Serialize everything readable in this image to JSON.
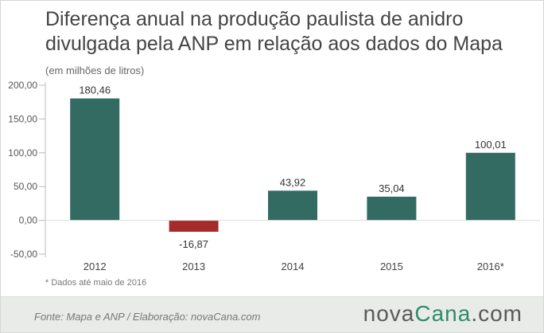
{
  "title": "Diferença anual na produção paulista de anidro divulgada pela ANP em relação aos dados do Mapa",
  "subtitle": "(em milhões de litros)",
  "footnote": "* Dados até maio de 2016",
  "footer": {
    "source": "Fonte: Mapa e ANP / Elaboração: novaCana.com",
    "logo_part1": "nova",
    "logo_part2": "Cana",
    "logo_part3": ".com"
  },
  "colors": {
    "positive": "#336b63",
    "negative": "#a52a2a",
    "axis_text": "#555555"
  },
  "chart_data": {
    "type": "bar",
    "categories": [
      "2012",
      "2013",
      "2014",
      "2015",
      "2016*"
    ],
    "values": [
      180.46,
      -16.87,
      43.92,
      35.04,
      100.01
    ],
    "value_labels": [
      "180,46",
      "-16,87",
      "43,92",
      "35,04",
      "100,01"
    ],
    "yticks": [
      200,
      150,
      100,
      50,
      0,
      -50
    ],
    "ytick_labels": [
      "200,00",
      "150,00",
      "100,00",
      "50,00",
      "0,00",
      "-50,00"
    ],
    "ylim": [
      -50,
      200
    ],
    "grid": false
  }
}
